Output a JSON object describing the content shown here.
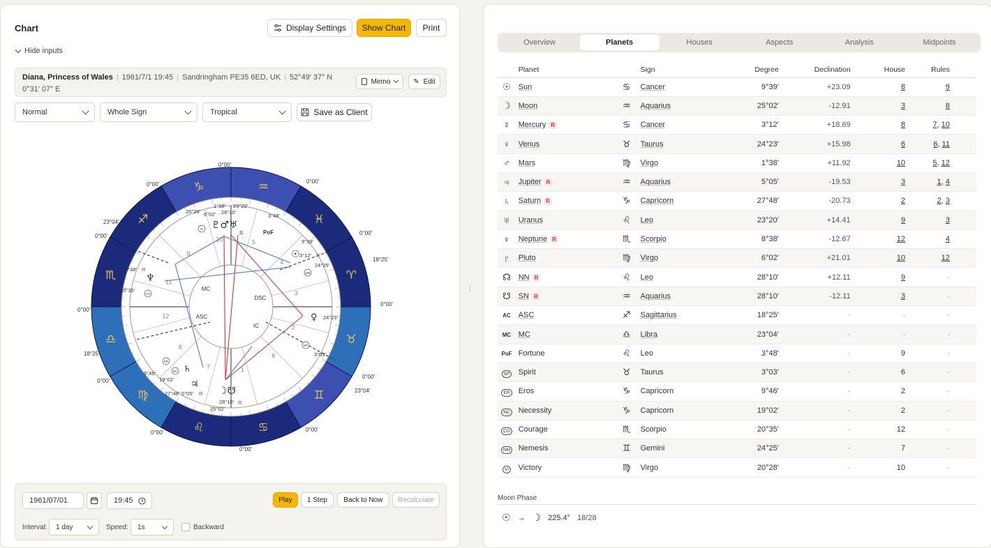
{
  "left": {
    "title": "Chart",
    "display_settings": "Display Settings",
    "show_chart": "Show Chart",
    "print": "Print",
    "hide_inputs": "Hide inputs",
    "profile": {
      "name": "Diana, Princess of Wales",
      "datetime": "1961/7/1 19:45",
      "place": "Sandringham PE35 6ED, UK",
      "lat": "52°49′ 37″ N",
      "lon": "0°31′ 07″ E",
      "memo": "Memo",
      "edit": "Edit"
    },
    "selects": {
      "mode": "Normal",
      "house": "Whole Sign",
      "zodiac": "Tropical"
    },
    "save_client": "Save as Client",
    "wheel": {
      "labels": [
        "0°00′",
        "0°00′",
        "0°00′",
        "23°04′",
        "0°00′",
        "0°00′",
        "18°25′",
        "0°00′",
        "0°00′",
        "18°25′",
        "0°00′",
        "0°00′",
        "23°04′",
        "0°00′",
        "0°00′",
        "0°00′"
      ],
      "angles": [
        "MC",
        "ASC",
        "DSC",
        "IC"
      ],
      "planet_degrees": [
        "1°38′",
        "23°20′",
        "28°10′",
        "6°02′",
        "20°28′",
        "3°48′",
        "9°39′",
        "3°12′",
        "24°25′",
        "8°38′",
        "20°35′",
        "24°23′",
        "3°03′",
        "9°46′",
        "19°02′",
        "27°48′",
        "5°05′",
        "25°02′",
        "28°10′"
      ],
      "house_numbers": [
        "10",
        "9",
        "11",
        "12",
        "8",
        "7",
        "1",
        "6",
        "2",
        "3",
        "4",
        "5"
      ]
    },
    "bottom": {
      "date": "1961/07/01",
      "time": "19:45",
      "play": "Play",
      "step": "1 Step",
      "back_to_now": "Back to Now",
      "recalculate": "Recalculate",
      "interval_label": "Interval:",
      "interval": "1 day",
      "speed_label": "Speed:",
      "speed": "1s",
      "backward": "Backward"
    }
  },
  "right": {
    "tabs": [
      "Overview",
      "Planets",
      "Houses",
      "Aspects",
      "Analysis",
      "Midpoints"
    ],
    "active_tab": "Planets",
    "columns": [
      "Planet",
      "Sign",
      "Degree",
      "Declination",
      "House",
      "Rules"
    ],
    "rows": [
      {
        "icon": "☉",
        "planet": "Sun",
        "retro": false,
        "sign_icon": "♋",
        "sign": "Cancer",
        "degree": "9°39′",
        "decl": "+23.09",
        "house": "8",
        "rules": "9"
      },
      {
        "icon": "☽",
        "planet": "Moon",
        "retro": false,
        "sign_icon": "♒",
        "sign": "Aquarius",
        "degree": "25°02′",
        "decl": "-12.91",
        "house": "3",
        "rules": "8"
      },
      {
        "icon": "☿",
        "planet": "Mercury",
        "retro": true,
        "sign_icon": "♋",
        "sign": "Cancer",
        "degree": "3°12′",
        "decl": "+18.69",
        "house": "8",
        "rules": "7, 10"
      },
      {
        "icon": "♀",
        "planet": "Venus",
        "retro": false,
        "sign_icon": "♉",
        "sign": "Taurus",
        "degree": "24°23′",
        "decl": "+15.98",
        "house": "6",
        "rules": "6, 11"
      },
      {
        "icon": "♂",
        "planet": "Mars",
        "retro": false,
        "sign_icon": "♍",
        "sign": "Virgo",
        "degree": "1°38′",
        "decl": "+11.92",
        "house": "10",
        "rules": "5, 12"
      },
      {
        "icon": "♃",
        "planet": "Jupiter",
        "retro": true,
        "sign_icon": "♒",
        "sign": "Aquarius",
        "degree": "5°05′",
        "decl": "-19.53",
        "house": "3",
        "rules": "1, 4"
      },
      {
        "icon": "♄",
        "planet": "Saturn",
        "retro": true,
        "sign_icon": "♑",
        "sign": "Capricorn",
        "degree": "27°48′",
        "decl": "-20.73",
        "house": "2",
        "rules": "2, 3"
      },
      {
        "icon": "♅",
        "planet": "Uranus",
        "retro": false,
        "sign_icon": "♌",
        "sign": "Leo",
        "degree": "23°20′",
        "decl": "+14.41",
        "house": "9",
        "rules": "3"
      },
      {
        "icon": "♆",
        "planet": "Neptune",
        "retro": true,
        "sign_icon": "♏",
        "sign": "Scorpio",
        "degree": "8°38′",
        "decl": "-12.67",
        "house": "12",
        "rules": "4"
      },
      {
        "icon": "♇",
        "planet": "Pluto",
        "retro": false,
        "sign_icon": "♍",
        "sign": "Virgo",
        "degree": "6°02′",
        "decl": "+21.01",
        "house": "10",
        "rules": "12"
      },
      {
        "icon": "☊",
        "planet": "NN",
        "retro": true,
        "sign_icon": "♌",
        "sign": "Leo",
        "degree": "28°10′",
        "decl": "+12.11",
        "house": "9",
        "rules": "-"
      },
      {
        "icon": "☋",
        "planet": "SN",
        "retro": true,
        "sign_icon": "♒",
        "sign": "Aquarius",
        "degree": "28°10′",
        "decl": "-12.11",
        "house": "3",
        "rules": "-"
      },
      {
        "icon": "AC",
        "planet": "ASC",
        "retro": false,
        "sign_icon": "♐",
        "sign": "Sagittarius",
        "degree": "18°25′",
        "decl": "-",
        "house": "-",
        "rules": "-"
      },
      {
        "icon": "MC",
        "planet": "MC",
        "retro": false,
        "sign_icon": "♎",
        "sign": "Libra",
        "degree": "23°04′",
        "decl": "-",
        "house": "-",
        "rules": "-"
      },
      {
        "icon": "PoF",
        "planet": "Fortune",
        "retro": false,
        "sign_icon": "♌",
        "sign": "Leo",
        "degree": "3°48′",
        "decl": "-",
        "house": "9",
        "rules": "-"
      },
      {
        "icon": "SP",
        "planet": "Spirit",
        "retro": false,
        "sign_icon": "♉",
        "sign": "Taurus",
        "degree": "3°03′",
        "decl": "-",
        "house": "6",
        "rules": "-"
      },
      {
        "icon": "ER",
        "planet": "Eros",
        "retro": false,
        "sign_icon": "♑",
        "sign": "Capricorn",
        "degree": "9°46′",
        "decl": "-",
        "house": "2",
        "rules": "-"
      },
      {
        "icon": "NC",
        "planet": "Necessity",
        "retro": false,
        "sign_icon": "♑",
        "sign": "Capricorn",
        "degree": "19°02′",
        "decl": "-",
        "house": "2",
        "rules": "-"
      },
      {
        "icon": "CO",
        "planet": "Courage",
        "retro": false,
        "sign_icon": "♏",
        "sign": "Scorpio",
        "degree": "20°35′",
        "decl": "-",
        "house": "12",
        "rules": "-"
      },
      {
        "icon": "NM",
        "planet": "Nemesis",
        "retro": false,
        "sign_icon": "♊",
        "sign": "Gemini",
        "degree": "24°25′",
        "decl": "-",
        "house": "7",
        "rules": "-"
      },
      {
        "icon": "VI",
        "planet": "Victory",
        "retro": false,
        "sign_icon": "♍",
        "sign": "Virgo",
        "degree": "20°28′",
        "decl": "-",
        "house": "10",
        "rules": "-"
      }
    ],
    "moon_phase": {
      "label": "Moon Phase",
      "arrow": "→",
      "angle": "225.4°",
      "day": "18/28"
    }
  },
  "colors": {
    "accent": "#f5b700",
    "wheel_dark": "#1b2a7a",
    "wheel_mid": "#3d4fb0",
    "wheel_light": "#2d6fb8",
    "retro": "#d33"
  }
}
